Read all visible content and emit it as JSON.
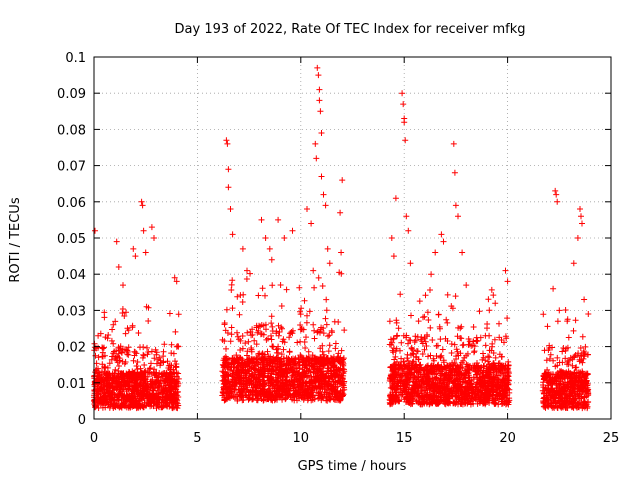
{
  "chart_data": {
    "type": "scatter",
    "title": "Day 193 of 2022, Rate Of TEC Index for receiver mfkg",
    "xlabel": "GPS time / hours",
    "ylabel": "ROTI / TECUs",
    "xlim": [
      0,
      25
    ],
    "ylim": [
      0,
      0.1
    ],
    "x_ticks": [
      "0",
      "5",
      "10",
      "15",
      "20",
      "25"
    ],
    "y_ticks": [
      "0",
      "0.01",
      "0.02",
      "0.03",
      "0.04",
      "0.05",
      "0.06",
      "0.07",
      "0.08",
      "0.09",
      "0.1"
    ],
    "grid": true,
    "marker": "+",
    "color": "#ff0000",
    "segments": [
      {
        "x_start": 0.0,
        "x_end": 4.1,
        "base": 0.009,
        "spread": 0.006
      },
      {
        "x_start": 6.2,
        "x_end": 12.1,
        "base": 0.011,
        "spread": 0.008
      },
      {
        "x_start": 14.3,
        "x_end": 20.1,
        "base": 0.01,
        "spread": 0.007
      },
      {
        "x_start": 21.7,
        "x_end": 23.9,
        "base": 0.009,
        "spread": 0.006
      }
    ],
    "peaks": [
      {
        "x": 0.05,
        "y": 0.052
      },
      {
        "x": 0.2,
        "y": 0.023
      },
      {
        "x": 1.1,
        "y": 0.049
      },
      {
        "x": 1.2,
        "y": 0.042
      },
      {
        "x": 1.4,
        "y": 0.037
      },
      {
        "x": 1.9,
        "y": 0.047
      },
      {
        "x": 2.0,
        "y": 0.045
      },
      {
        "x": 2.3,
        "y": 0.06
      },
      {
        "x": 2.35,
        "y": 0.059
      },
      {
        "x": 2.4,
        "y": 0.052
      },
      {
        "x": 2.5,
        "y": 0.046
      },
      {
        "x": 2.8,
        "y": 0.053
      },
      {
        "x": 2.9,
        "y": 0.05
      },
      {
        "x": 3.9,
        "y": 0.039
      },
      {
        "x": 4.0,
        "y": 0.038
      },
      {
        "x": 6.4,
        "y": 0.077
      },
      {
        "x": 6.45,
        "y": 0.076
      },
      {
        "x": 6.5,
        "y": 0.069
      },
      {
        "x": 6.5,
        "y": 0.064
      },
      {
        "x": 6.6,
        "y": 0.058
      },
      {
        "x": 6.7,
        "y": 0.051
      },
      {
        "x": 7.2,
        "y": 0.047
      },
      {
        "x": 7.4,
        "y": 0.041
      },
      {
        "x": 8.1,
        "y": 0.055
      },
      {
        "x": 8.3,
        "y": 0.05
      },
      {
        "x": 8.5,
        "y": 0.047
      },
      {
        "x": 8.6,
        "y": 0.044
      },
      {
        "x": 8.9,
        "y": 0.055
      },
      {
        "x": 9.2,
        "y": 0.05
      },
      {
        "x": 9.6,
        "y": 0.052
      },
      {
        "x": 10.3,
        "y": 0.058
      },
      {
        "x": 10.5,
        "y": 0.054
      },
      {
        "x": 10.6,
        "y": 0.041
      },
      {
        "x": 10.7,
        "y": 0.076
      },
      {
        "x": 10.75,
        "y": 0.072
      },
      {
        "x": 10.8,
        "y": 0.097
      },
      {
        "x": 10.85,
        "y": 0.095
      },
      {
        "x": 10.9,
        "y": 0.091
      },
      {
        "x": 10.9,
        "y": 0.088
      },
      {
        "x": 10.95,
        "y": 0.085
      },
      {
        "x": 11.0,
        "y": 0.079
      },
      {
        "x": 11.0,
        "y": 0.067
      },
      {
        "x": 11.1,
        "y": 0.062
      },
      {
        "x": 11.2,
        "y": 0.059
      },
      {
        "x": 11.3,
        "y": 0.047
      },
      {
        "x": 11.4,
        "y": 0.043
      },
      {
        "x": 12.0,
        "y": 0.066
      },
      {
        "x": 11.9,
        "y": 0.057
      },
      {
        "x": 11.95,
        "y": 0.046
      },
      {
        "x": 14.6,
        "y": 0.061
      },
      {
        "x": 14.4,
        "y": 0.05
      },
      {
        "x": 14.5,
        "y": 0.045
      },
      {
        "x": 14.9,
        "y": 0.09
      },
      {
        "x": 14.95,
        "y": 0.087
      },
      {
        "x": 15.0,
        "y": 0.083
      },
      {
        "x": 15.0,
        "y": 0.082
      },
      {
        "x": 15.05,
        "y": 0.077
      },
      {
        "x": 15.1,
        "y": 0.056
      },
      {
        "x": 15.2,
        "y": 0.052
      },
      {
        "x": 15.3,
        "y": 0.043
      },
      {
        "x": 16.3,
        "y": 0.04
      },
      {
        "x": 16.5,
        "y": 0.046
      },
      {
        "x": 16.8,
        "y": 0.051
      },
      {
        "x": 16.9,
        "y": 0.049
      },
      {
        "x": 17.4,
        "y": 0.076
      },
      {
        "x": 17.45,
        "y": 0.068
      },
      {
        "x": 17.5,
        "y": 0.059
      },
      {
        "x": 17.6,
        "y": 0.056
      },
      {
        "x": 17.8,
        "y": 0.046
      },
      {
        "x": 18.0,
        "y": 0.037
      },
      {
        "x": 19.4,
        "y": 0.032
      },
      {
        "x": 19.9,
        "y": 0.041
      },
      {
        "x": 20.0,
        "y": 0.038
      },
      {
        "x": 22.3,
        "y": 0.063
      },
      {
        "x": 22.35,
        "y": 0.062
      },
      {
        "x": 22.4,
        "y": 0.06
      },
      {
        "x": 22.2,
        "y": 0.036
      },
      {
        "x": 22.5,
        "y": 0.03
      },
      {
        "x": 23.2,
        "y": 0.043
      },
      {
        "x": 23.4,
        "y": 0.05
      },
      {
        "x": 23.5,
        "y": 0.058
      },
      {
        "x": 23.55,
        "y": 0.056
      },
      {
        "x": 23.6,
        "y": 0.054
      },
      {
        "x": 23.7,
        "y": 0.033
      },
      {
        "x": 23.9,
        "y": 0.029
      }
    ]
  }
}
